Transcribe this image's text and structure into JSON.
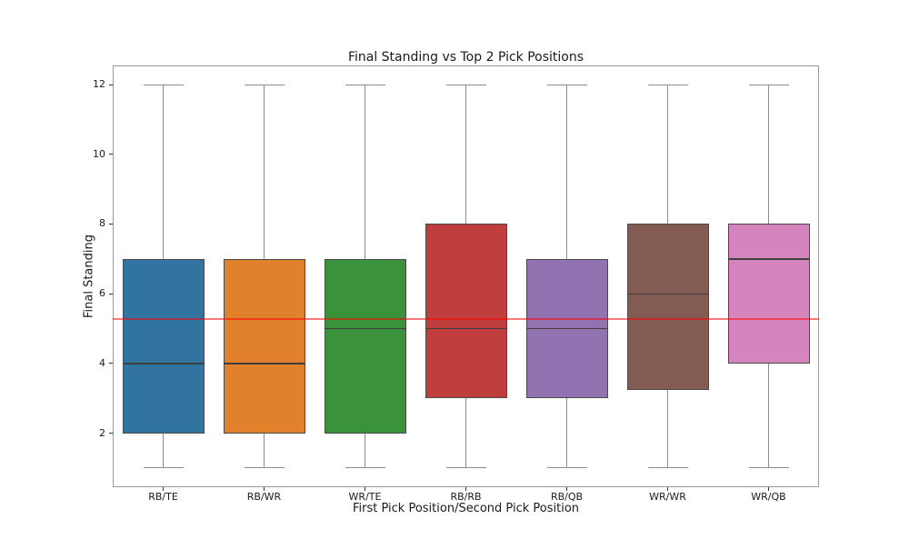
{
  "figure": {
    "title": "Final Standing vs Top 2 Pick Positions",
    "xlabel": "First Pick Position/Second Pick Position",
    "ylabel": "Final Standing"
  },
  "chart_data": {
    "type": "boxplot",
    "title": "Final Standing vs Top 2 Pick Positions",
    "xlabel": "First Pick Position/Second Pick Position",
    "ylabel": "Final Standing",
    "categories": [
      "RB/TE",
      "RB/WR",
      "WR/TE",
      "RB/RB",
      "RB/QB",
      "WR/WR",
      "WR/QB"
    ],
    "boxes": [
      {
        "label": "RB/TE",
        "whisker_low": 1,
        "q1": 2,
        "median": 4,
        "q3": 7,
        "whisker_high": 12,
        "color": "#3274a1"
      },
      {
        "label": "RB/WR",
        "whisker_low": 1,
        "q1": 2,
        "median": 4,
        "q3": 7,
        "whisker_high": 12,
        "color": "#e1812c"
      },
      {
        "label": "WR/TE",
        "whisker_low": 1,
        "q1": 2,
        "median": 5,
        "q3": 7,
        "whisker_high": 12,
        "color": "#3a923a"
      },
      {
        "label": "RB/RB",
        "whisker_low": 1,
        "q1": 3,
        "median": 5,
        "q3": 8,
        "whisker_high": 12,
        "color": "#c03d3e"
      },
      {
        "label": "RB/QB",
        "whisker_low": 1,
        "q1": 3,
        "median": 5,
        "q3": 7,
        "whisker_high": 12,
        "color": "#9372b2"
      },
      {
        "label": "WR/WR",
        "whisker_low": 1,
        "q1": 3.25,
        "median": 6,
        "q3": 8,
        "whisker_high": 12,
        "color": "#845b53"
      },
      {
        "label": "WR/QB",
        "whisker_low": 1,
        "q1": 4,
        "median": 7,
        "q3": 8,
        "whisker_high": 12,
        "color": "#d684bd"
      }
    ],
    "reference_line": {
      "value": 5.27,
      "color": "#ff0000",
      "opacity": 0.52
    },
    "y_ticks": [
      2,
      4,
      6,
      8,
      10,
      12
    ],
    "ylim": [
      0.45,
      12.55
    ],
    "grid": false,
    "legend": "none"
  }
}
